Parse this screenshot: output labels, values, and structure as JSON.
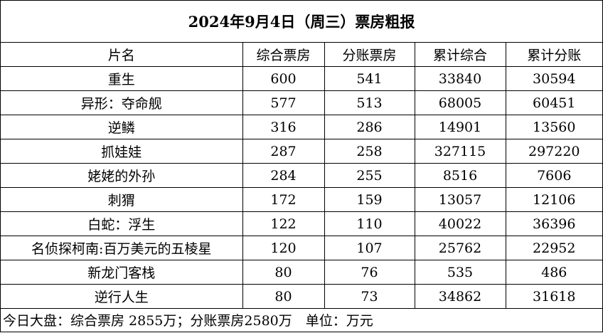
{
  "title": "2024年9月4日（周三）票房粗报",
  "table": {
    "header": [
      "片名",
      "综合票房",
      "分账票房",
      "累计综合",
      "累计分账"
    ],
    "rows": [
      [
        "重生",
        "600",
        "541",
        "33840",
        "30594"
      ],
      [
        "异形：夺命舰",
        "577",
        "513",
        "68005",
        "60451"
      ],
      [
        "逆鳞",
        "316",
        "286",
        "14901",
        "13560"
      ],
      [
        "抓娃娃",
        "287",
        "258",
        "327115",
        "297220"
      ],
      [
        "姥姥的外孙",
        "284",
        "255",
        "8516",
        "7606"
      ],
      [
        "刺猬",
        "172",
        "159",
        "13057",
        "12106"
      ],
      [
        "白蛇：浮生",
        "122",
        "110",
        "40022",
        "36396"
      ],
      [
        "名侦探柯南:百万美元的五棱星",
        "120",
        "107",
        "25762",
        "22952"
      ],
      [
        "新龙门客栈",
        "80",
        "76",
        "535",
        "486"
      ],
      [
        "逆行人生",
        "80",
        "73",
        "34862",
        "31618"
      ]
    ]
  },
  "footer": "今日大盘：综合票房 2855万；分账票房2580万　单位：万元"
}
